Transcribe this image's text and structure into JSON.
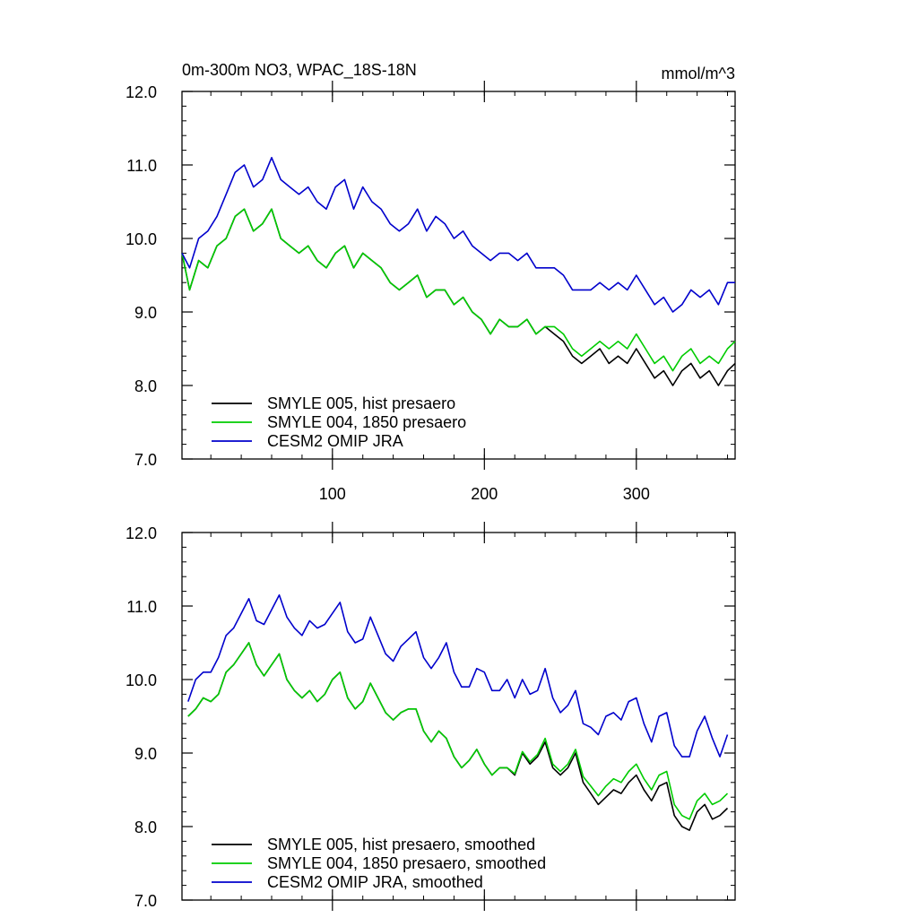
{
  "chart_data": [
    {
      "type": "line",
      "title": "0m-300m NO3, WPAC_18S-18N",
      "units": "mmol/m^3",
      "xlabel": "",
      "ylabel": "",
      "xlim": [
        1,
        365
      ],
      "ylim": [
        7.0,
        12.0
      ],
      "x_ticks": [
        100,
        200,
        300
      ],
      "x_tick_labels": [
        "100",
        "200",
        "300"
      ],
      "y_ticks": [
        7.0,
        8.0,
        9.0,
        10.0,
        11.0,
        12.0
      ],
      "y_tick_labels": [
        "7.0",
        "8.0",
        "9.0",
        "10.0",
        "11.0",
        "12.0"
      ],
      "grid": false,
      "legend_position": "bottom-left",
      "series": [
        {
          "name": "SMYLE 005, hist presaero",
          "color": "#000000",
          "x": [
            1,
            6,
            12,
            18,
            24,
            30,
            36,
            42,
            48,
            54,
            60,
            66,
            72,
            78,
            84,
            90,
            96,
            102,
            108,
            114,
            120,
            126,
            132,
            138,
            144,
            150,
            156,
            162,
            168,
            174,
            180,
            186,
            192,
            198,
            204,
            210,
            216,
            222,
            228,
            234,
            240,
            246,
            252,
            258,
            264,
            270,
            276,
            282,
            288,
            294,
            300,
            306,
            312,
            318,
            324,
            330,
            336,
            342,
            348,
            354,
            360,
            365
          ],
          "y": [
            9.8,
            9.3,
            9.7,
            9.6,
            9.9,
            10.0,
            10.3,
            10.4,
            10.1,
            10.2,
            10.4,
            10.0,
            9.9,
            9.8,
            9.9,
            9.7,
            9.6,
            9.8,
            9.9,
            9.6,
            9.8,
            9.7,
            9.6,
            9.4,
            9.3,
            9.4,
            9.5,
            9.2,
            9.3,
            9.3,
            9.1,
            9.2,
            9.0,
            8.9,
            8.7,
            8.9,
            8.8,
            8.8,
            8.9,
            8.7,
            8.8,
            8.7,
            8.6,
            8.4,
            8.3,
            8.4,
            8.5,
            8.3,
            8.4,
            8.3,
            8.5,
            8.3,
            8.1,
            8.2,
            8.0,
            8.2,
            8.3,
            8.1,
            8.2,
            8.0,
            8.2,
            8.3
          ]
        },
        {
          "name": "SMYLE 004, 1850 presaero",
          "color": "#00cc00",
          "x": [
            1,
            6,
            12,
            18,
            24,
            30,
            36,
            42,
            48,
            54,
            60,
            66,
            72,
            78,
            84,
            90,
            96,
            102,
            108,
            114,
            120,
            126,
            132,
            138,
            144,
            150,
            156,
            162,
            168,
            174,
            180,
            186,
            192,
            198,
            204,
            210,
            216,
            222,
            228,
            234,
            240,
            246,
            252,
            258,
            264,
            270,
            276,
            282,
            288,
            294,
            300,
            306,
            312,
            318,
            324,
            330,
            336,
            342,
            348,
            354,
            360,
            365
          ],
          "y": [
            9.8,
            9.3,
            9.7,
            9.6,
            9.9,
            10.0,
            10.3,
            10.4,
            10.1,
            10.2,
            10.4,
            10.0,
            9.9,
            9.8,
            9.9,
            9.7,
            9.6,
            9.8,
            9.9,
            9.6,
            9.8,
            9.7,
            9.6,
            9.4,
            9.3,
            9.4,
            9.5,
            9.2,
            9.3,
            9.3,
            9.1,
            9.2,
            9.0,
            8.9,
            8.7,
            8.9,
            8.8,
            8.8,
            8.9,
            8.7,
            8.8,
            8.8,
            8.7,
            8.5,
            8.4,
            8.5,
            8.6,
            8.5,
            8.6,
            8.5,
            8.7,
            8.5,
            8.3,
            8.4,
            8.2,
            8.4,
            8.5,
            8.3,
            8.4,
            8.3,
            8.5,
            8.6
          ]
        },
        {
          "name": "CESM2 OMIP JRA",
          "color": "#0000cc",
          "x": [
            1,
            6,
            12,
            18,
            24,
            30,
            36,
            42,
            48,
            54,
            60,
            66,
            72,
            78,
            84,
            90,
            96,
            102,
            108,
            114,
            120,
            126,
            132,
            138,
            144,
            150,
            156,
            162,
            168,
            174,
            180,
            186,
            192,
            198,
            204,
            210,
            216,
            222,
            228,
            234,
            240,
            246,
            252,
            258,
            264,
            270,
            276,
            282,
            288,
            294,
            300,
            306,
            312,
            318,
            324,
            330,
            336,
            342,
            348,
            354,
            360,
            365
          ],
          "y": [
            9.8,
            9.6,
            10.0,
            10.1,
            10.3,
            10.6,
            10.9,
            11.0,
            10.7,
            10.8,
            11.1,
            10.8,
            10.7,
            10.6,
            10.7,
            10.5,
            10.4,
            10.7,
            10.8,
            10.4,
            10.7,
            10.5,
            10.4,
            10.2,
            10.1,
            10.2,
            10.4,
            10.1,
            10.3,
            10.2,
            10.0,
            10.1,
            9.9,
            9.8,
            9.7,
            9.8,
            9.8,
            9.7,
            9.8,
            9.6,
            9.6,
            9.6,
            9.5,
            9.3,
            9.3,
            9.3,
            9.4,
            9.3,
            9.4,
            9.3,
            9.5,
            9.3,
            9.1,
            9.2,
            9.0,
            9.1,
            9.3,
            9.2,
            9.3,
            9.1,
            9.4,
            9.4
          ]
        }
      ]
    },
    {
      "type": "line",
      "title": "",
      "units": "",
      "xlabel": "",
      "ylabel": "",
      "xlim": [
        1,
        365
      ],
      "ylim": [
        7.0,
        12.0
      ],
      "x_ticks": [
        100,
        200,
        300
      ],
      "x_tick_labels": [
        "",
        "",
        ""
      ],
      "y_ticks": [
        7.0,
        8.0,
        9.0,
        10.0,
        11.0,
        12.0
      ],
      "y_tick_labels": [
        "7.0",
        "8.0",
        "9.0",
        "10.0",
        "11.0",
        "12.0"
      ],
      "grid": false,
      "legend_position": "bottom-left",
      "series": [
        {
          "name": "SMYLE 005, hist presaero, smoothed",
          "color": "#000000",
          "x": [
            5,
            10,
            15,
            20,
            25,
            30,
            35,
            40,
            45,
            50,
            55,
            60,
            65,
            70,
            75,
            80,
            85,
            90,
            95,
            100,
            105,
            110,
            115,
            120,
            125,
            130,
            135,
            140,
            145,
            150,
            155,
            160,
            165,
            170,
            175,
            180,
            185,
            190,
            195,
            200,
            205,
            210,
            215,
            220,
            225,
            230,
            235,
            240,
            245,
            250,
            255,
            260,
            265,
            270,
            275,
            280,
            285,
            290,
            295,
            300,
            305,
            310,
            315,
            320,
            325,
            330,
            335,
            340,
            345,
            350,
            355,
            360
          ],
          "y": [
            9.5,
            9.6,
            9.75,
            9.7,
            9.8,
            10.1,
            10.2,
            10.35,
            10.5,
            10.2,
            10.05,
            10.2,
            10.35,
            10.0,
            9.85,
            9.75,
            9.85,
            9.7,
            9.8,
            10.0,
            10.1,
            9.75,
            9.6,
            9.7,
            9.95,
            9.75,
            9.55,
            9.45,
            9.55,
            9.6,
            9.6,
            9.3,
            9.15,
            9.3,
            9.2,
            8.95,
            8.8,
            8.9,
            9.05,
            8.85,
            8.7,
            8.8,
            8.8,
            8.7,
            9.0,
            8.85,
            8.95,
            9.15,
            8.8,
            8.7,
            8.8,
            9.0,
            8.6,
            8.45,
            8.3,
            8.4,
            8.5,
            8.45,
            8.6,
            8.7,
            8.5,
            8.35,
            8.55,
            8.6,
            8.15,
            8.0,
            7.95,
            8.2,
            8.3,
            8.1,
            8.15,
            8.25
          ]
        },
        {
          "name": "SMYLE 004, 1850 presaero, smoothed",
          "color": "#00cc00",
          "x": [
            5,
            10,
            15,
            20,
            25,
            30,
            35,
            40,
            45,
            50,
            55,
            60,
            65,
            70,
            75,
            80,
            85,
            90,
            95,
            100,
            105,
            110,
            115,
            120,
            125,
            130,
            135,
            140,
            145,
            150,
            155,
            160,
            165,
            170,
            175,
            180,
            185,
            190,
            195,
            200,
            205,
            210,
            215,
            220,
            225,
            230,
            235,
            240,
            245,
            250,
            255,
            260,
            265,
            270,
            275,
            280,
            285,
            290,
            295,
            300,
            305,
            310,
            315,
            320,
            325,
            330,
            335,
            340,
            345,
            350,
            355,
            360
          ],
          "y": [
            9.5,
            9.6,
            9.75,
            9.7,
            9.8,
            10.1,
            10.2,
            10.35,
            10.5,
            10.2,
            10.05,
            10.2,
            10.35,
            10.0,
            9.85,
            9.75,
            9.85,
            9.7,
            9.8,
            10.0,
            10.1,
            9.75,
            9.6,
            9.7,
            9.95,
            9.75,
            9.55,
            9.45,
            9.55,
            9.6,
            9.6,
            9.3,
            9.15,
            9.3,
            9.2,
            8.95,
            8.8,
            8.9,
            9.05,
            8.85,
            8.7,
            8.8,
            8.8,
            8.72,
            9.02,
            8.88,
            8.98,
            9.2,
            8.85,
            8.75,
            8.85,
            9.05,
            8.68,
            8.55,
            8.42,
            8.55,
            8.65,
            8.6,
            8.75,
            8.85,
            8.65,
            8.5,
            8.7,
            8.75,
            8.3,
            8.15,
            8.1,
            8.35,
            8.45,
            8.3,
            8.35,
            8.45
          ]
        },
        {
          "name": "CESM2 OMIP JRA, smoothed",
          "color": "#0000cc",
          "x": [
            5,
            10,
            15,
            20,
            25,
            30,
            35,
            40,
            45,
            50,
            55,
            60,
            65,
            70,
            75,
            80,
            85,
            90,
            95,
            100,
            105,
            110,
            115,
            120,
            125,
            130,
            135,
            140,
            145,
            150,
            155,
            160,
            165,
            170,
            175,
            180,
            185,
            190,
            195,
            200,
            205,
            210,
            215,
            220,
            225,
            230,
            235,
            240,
            245,
            250,
            255,
            260,
            265,
            270,
            275,
            280,
            285,
            290,
            295,
            300,
            305,
            310,
            315,
            320,
            325,
            330,
            335,
            340,
            345,
            350,
            355,
            360
          ],
          "y": [
            9.7,
            10.0,
            10.1,
            10.1,
            10.3,
            10.6,
            10.7,
            10.9,
            11.1,
            10.8,
            10.75,
            10.95,
            11.15,
            10.85,
            10.7,
            10.6,
            10.8,
            10.7,
            10.75,
            10.9,
            11.05,
            10.65,
            10.5,
            10.55,
            10.85,
            10.6,
            10.35,
            10.25,
            10.45,
            10.55,
            10.65,
            10.3,
            10.15,
            10.3,
            10.5,
            10.1,
            9.9,
            9.9,
            10.15,
            10.1,
            9.85,
            9.85,
            10.0,
            9.75,
            10.0,
            9.8,
            9.85,
            10.15,
            9.75,
            9.55,
            9.65,
            9.85,
            9.4,
            9.35,
            9.25,
            9.5,
            9.55,
            9.45,
            9.7,
            9.75,
            9.4,
            9.15,
            9.5,
            9.55,
            9.1,
            8.95,
            8.95,
            9.3,
            9.5,
            9.2,
            8.95,
            9.25
          ]
        }
      ]
    }
  ]
}
